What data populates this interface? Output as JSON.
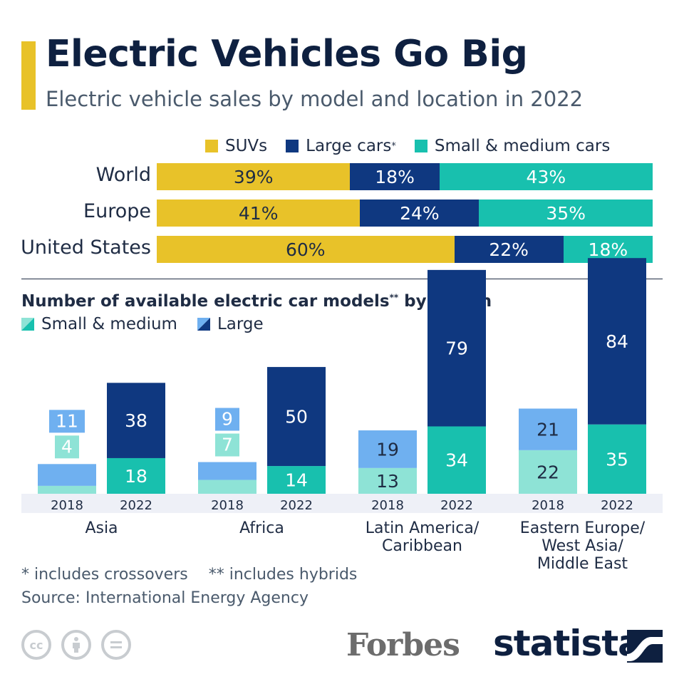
{
  "header": {
    "title": "Electric Vehicles Go Big",
    "subtitle": "Electric vehicle sales by model and location in 2022"
  },
  "colors": {
    "accent": "#e8c229",
    "suv": "#e8c229",
    "large": "#0f3880",
    "small": "#18c0ae",
    "large_2018": "#6fb0f0",
    "small_2018": "#8ee3d6"
  },
  "legend_top": {
    "suv": "SUVs",
    "large": "Large cars",
    "large_mark": "*",
    "small": "Small & medium cars"
  },
  "legend_bottom": {
    "small": "Small & medium",
    "large": "Large"
  },
  "section2": {
    "title": "Number of available electric car models",
    "title_mark": "**",
    "title_suffix": " by region"
  },
  "chart_data": [
    {
      "type": "bar",
      "orientation": "horizontal",
      "stacked": true,
      "title": "Electric vehicle sales by model and location in 2022",
      "categories": [
        "World",
        "Europe",
        "United States"
      ],
      "unit": "%",
      "series": [
        {
          "name": "SUVs",
          "values": [
            39,
            41,
            60
          ]
        },
        {
          "name": "Large cars",
          "values": [
            18,
            24,
            22
          ]
        },
        {
          "name": "Small & medium cars",
          "values": [
            43,
            35,
            18
          ]
        }
      ],
      "xlim": [
        0,
        100
      ]
    },
    {
      "type": "bar",
      "orientation": "vertical",
      "stacked": true,
      "title": "Number of available electric car models by region",
      "categories": [
        "Asia",
        "Africa",
        "Latin America/ Caribbean",
        "Eastern Europe/ West Asia/ Middle East"
      ],
      "category_lines": [
        [
          "Asia"
        ],
        [
          "Africa"
        ],
        [
          "Latin America/",
          "Caribbean"
        ],
        [
          "Eastern Europe/",
          "West Asia/",
          "Middle East"
        ]
      ],
      "years": [
        "2018",
        "2022"
      ],
      "series": [
        {
          "name": "Small & medium",
          "2018": [
            4,
            7,
            13,
            22
          ],
          "2022": [
            18,
            14,
            34,
            35
          ]
        },
        {
          "name": "Large",
          "2018": [
            11,
            9,
            19,
            21
          ],
          "2022": [
            38,
            50,
            79,
            84
          ]
        }
      ],
      "ylim": [
        0,
        120
      ]
    }
  ],
  "footnotes": {
    "note1": "* includes crossovers",
    "note2": "** includes hybrids",
    "source": "Source: International Energy Agency"
  },
  "branding": {
    "cc1": "cc",
    "forbes": "Forbes",
    "statista": "statista"
  }
}
